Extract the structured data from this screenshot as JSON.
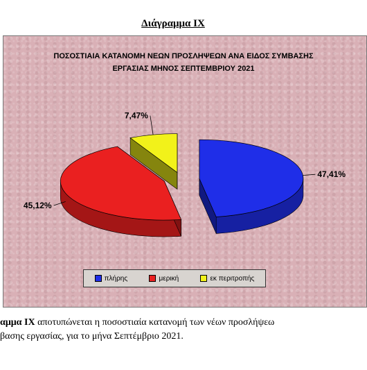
{
  "heading": "Διάγραμμα ΙΧ",
  "chart_data": {
    "type": "pie",
    "title_line1": "ΠΟΣΟΣΤΙΑΙΑ  ΚΑΤΑΝΟΜΗ  ΝΕΩΝ  ΠΡΟΣΛΗΨΕΩΝ ΑΝΑ ΕΙΔΟΣ ΣΥΜΒΑΣΗΣ",
    "title_line2": "ΕΡΓΑΣΙΑΣ ΜΗΝΟΣ  ΣΕΠΤΕΜΒΡΙΟΥ 2021",
    "slices": [
      {
        "name": "πλήρης",
        "value": 47.41,
        "label": "47,41%",
        "color": "#1f2ee8"
      },
      {
        "name": "μερική",
        "value": 45.12,
        "label": "45,12%",
        "color": "#ea2020"
      },
      {
        "name": "εκ περιτροπής",
        "value": 7.47,
        "label": "7,47%",
        "color": "#f2f21a"
      }
    ],
    "legend": {
      "position": "bottom"
    }
  },
  "caption": {
    "line1_bold": "αμμα  ΙΧ",
    "line1_rest": "  αποτυπώνεται η ποσοστιαία κατανομή των νέων προσλήψεω",
    "line2": "βασης εργασίας,  για το μήνα Σεπτέμβριο 2021."
  }
}
